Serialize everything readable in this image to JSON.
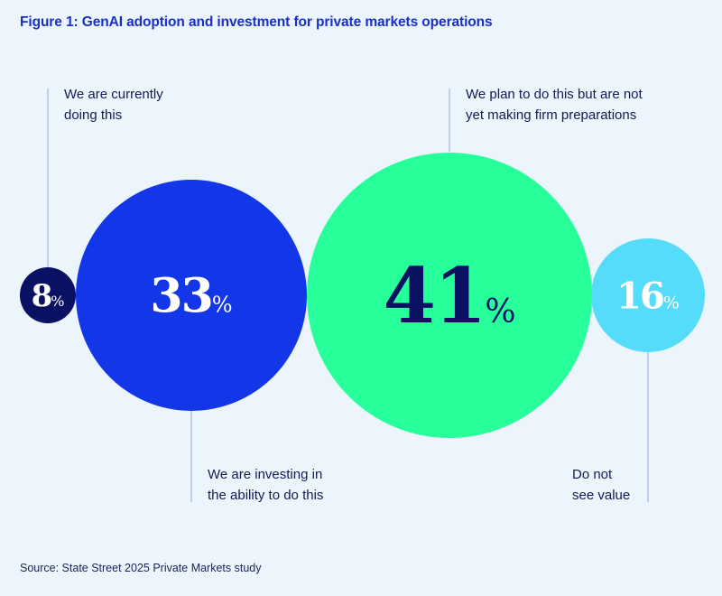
{
  "title": "Figure 1: GenAI adoption and investment for private markets operations",
  "source": "Source: State Street 2025 Private Markets study",
  "chart_data": {
    "type": "bubble",
    "title": "Figure 1: GenAI adoption and investment for private markets operations",
    "unit": "%",
    "series": [
      {
        "label": "We are currently\ndoing this",
        "value": 8,
        "color": "#0b1162",
        "text_color": "#ffffff"
      },
      {
        "label": "We are investing in\nthe ability to do this",
        "value": 33,
        "color": "#1337e8",
        "text_color": "#ffffff"
      },
      {
        "label": "We plan to do this but are not\nyet making firm preparations",
        "value": 41,
        "color": "#26ff9a",
        "text_color": "#0b1162"
      },
      {
        "label": "Do not\nsee value",
        "value": 16,
        "color": "#56dcfb",
        "text_color": "#ffffff"
      }
    ]
  }
}
